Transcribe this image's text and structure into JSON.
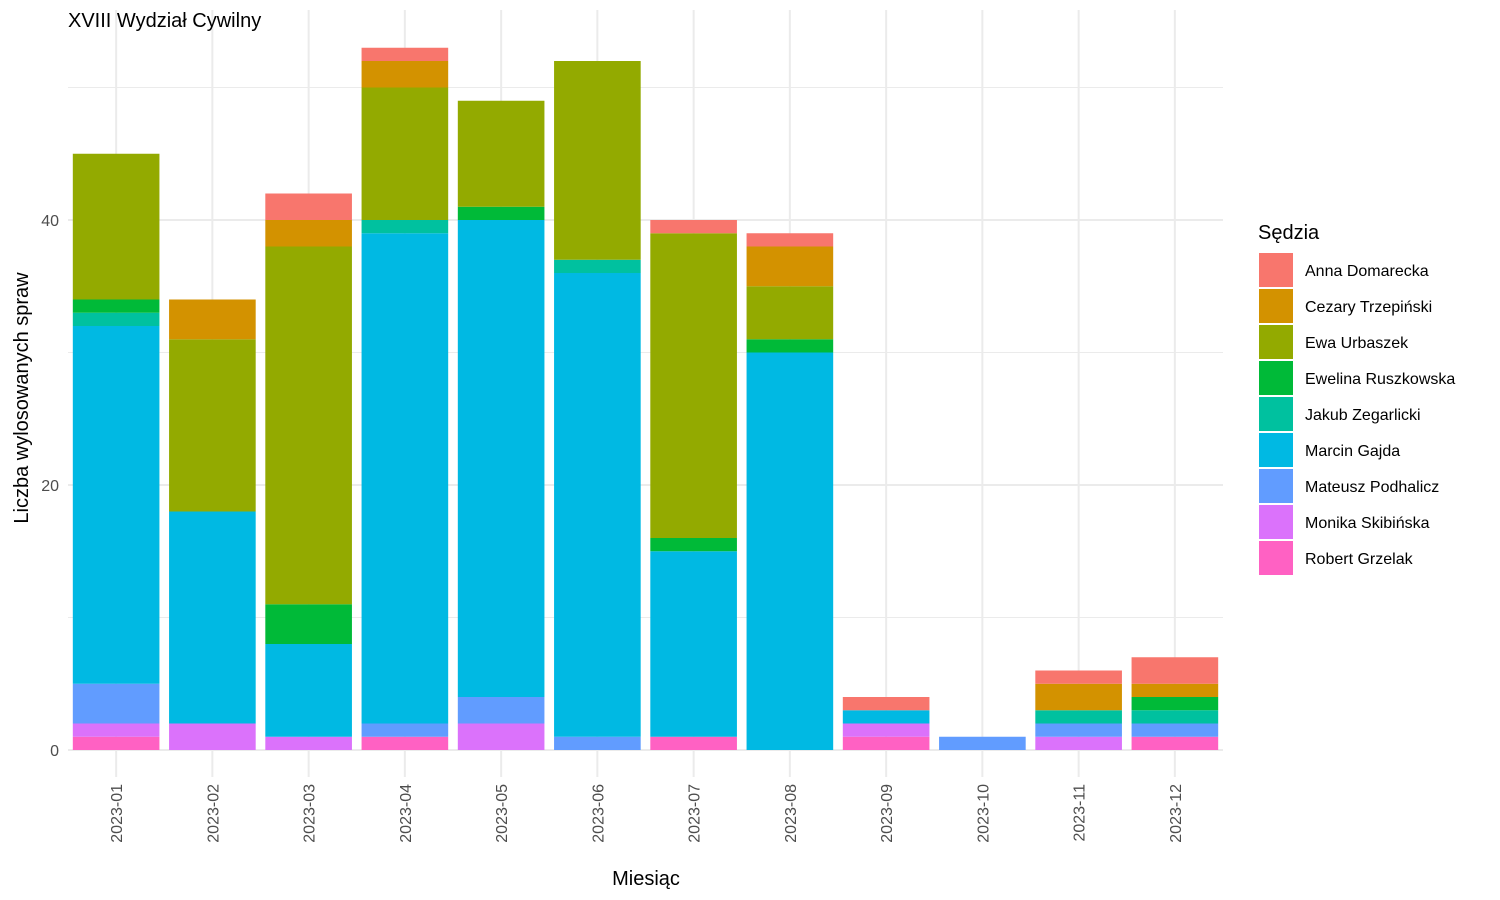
{
  "chart_data": {
    "type": "bar",
    "stacked": true,
    "title": "XVIII Wydział Cywilny",
    "xlabel": "Miesiąc",
    "ylabel": "Liczba wylosowanych spraw",
    "ylim": [
      -2.5,
      55.5
    ],
    "yticks": [
      0,
      20,
      40
    ],
    "grid": true,
    "legend_title": "Sędzia",
    "legend_position": "right",
    "categories": [
      "2023-01",
      "2023-02",
      "2023-03",
      "2023-04",
      "2023-05",
      "2023-06",
      "2023-07",
      "2023-08",
      "2023-09",
      "2023-10",
      "2023-11",
      "2023-12"
    ],
    "series": [
      {
        "name": "Robert Grzelak",
        "color": "#FF61C3",
        "values": [
          1,
          0,
          0,
          1,
          0,
          0,
          1,
          0,
          1,
          0,
          0,
          1
        ]
      },
      {
        "name": "Monika Skibińska",
        "color": "#DB72FB",
        "values": [
          1,
          2,
          1,
          0,
          2,
          0,
          0,
          0,
          1,
          0,
          1,
          0
        ]
      },
      {
        "name": "Mateusz Podhalicz",
        "color": "#619CFF",
        "values": [
          3,
          0,
          0,
          1,
          2,
          1,
          0,
          0,
          0,
          1,
          1,
          1
        ]
      },
      {
        "name": "Marcin Gajda",
        "color": "#00B9E3",
        "values": [
          27,
          16,
          7,
          37,
          36,
          35,
          14,
          30,
          1,
          0,
          0,
          0
        ]
      },
      {
        "name": "Jakub Zegarlicki",
        "color": "#00C19F",
        "values": [
          1,
          0,
          0,
          1,
          0,
          1,
          0,
          0,
          0,
          0,
          1,
          1
        ]
      },
      {
        "name": "Ewelina Ruszkowska",
        "color": "#00BA38",
        "values": [
          1,
          0,
          3,
          0,
          1,
          0,
          1,
          1,
          0,
          0,
          0,
          1
        ]
      },
      {
        "name": "Ewa Urbaszek",
        "color": "#93AA00",
        "values": [
          11,
          13,
          27,
          10,
          8,
          15,
          23,
          4,
          0,
          0,
          0,
          0
        ]
      },
      {
        "name": "Cezary Trzepiński",
        "color": "#D39200",
        "values": [
          0,
          3,
          2,
          2,
          0,
          0,
          0,
          3,
          0,
          0,
          2,
          1
        ]
      },
      {
        "name": "Anna Domarecka",
        "color": "#F8766D",
        "values": [
          0,
          0,
          2,
          1,
          0,
          0,
          1,
          1,
          1,
          0,
          1,
          2
        ]
      }
    ]
  }
}
